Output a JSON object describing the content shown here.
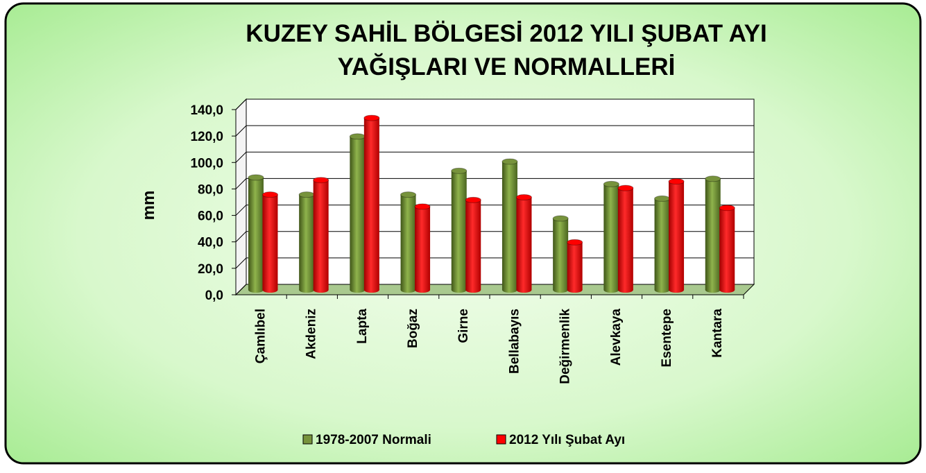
{
  "chart_data": {
    "type": "bar",
    "title": [
      "KUZEY SAHİL BÖLGESİ 2012 YILI ŞUBAT AYI",
      "YAĞIŞLARI VE NORMALLERİ"
    ],
    "y_label": "mm",
    "categories": [
      "Çamlıbel",
      "Akdeniz",
      "Lapta",
      "Boğaz",
      "Girne",
      "Bellabayıs",
      "Değirmenlik",
      "Alevkaya",
      "Esentepe",
      "Kantara"
    ],
    "series": [
      {
        "name": "1978-2007 Normali",
        "color": "#77933c",
        "values": [
          85,
          72,
          116,
          72,
          90,
          97,
          54,
          80,
          69,
          84
        ]
      },
      {
        "name": "2012 Yılı Şubat Ayı",
        "color": "#ff0000",
        "values": [
          72,
          83,
          130,
          63,
          68,
          70,
          36,
          77,
          82,
          62
        ]
      }
    ],
    "ylim": [
      0,
      140
    ],
    "yticks": [
      {
        "value": 0,
        "label": "0,0"
      },
      {
        "value": 20,
        "label": "20,0"
      },
      {
        "value": 40,
        "label": "40,0"
      },
      {
        "value": 60,
        "label": "60,0"
      },
      {
        "value": 80,
        "label": "80,0"
      },
      {
        "value": 100,
        "label": "100,0"
      },
      {
        "value": 120,
        "label": "120,0"
      },
      {
        "value": 140,
        "label": "140,0"
      }
    ],
    "grid": true,
    "legend": "bottom"
  }
}
